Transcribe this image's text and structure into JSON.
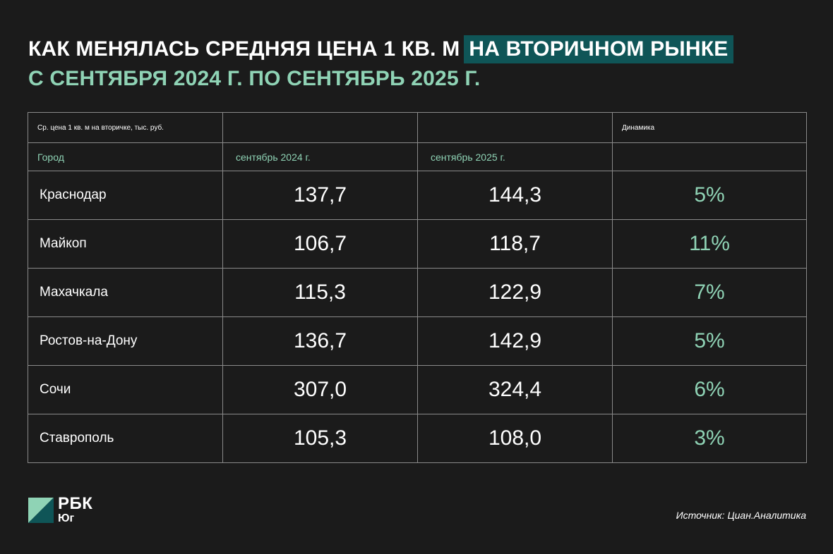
{
  "header": {
    "title_main": "КАК МЕНЯЛАСЬ СРЕДНЯЯ ЦЕНА 1 КВ. М",
    "title_highlight": "НА ВТОРИЧНОМ РЫНКЕ",
    "subtitle": "С СЕНТЯБРЯ 2024 Г. ПО СЕНТЯБРЬ 2025 Г."
  },
  "chart_data": {
    "type": "table",
    "caption": "Ср. цена 1 кв. м на вторичке, тыс. руб.",
    "dynamics_header": "Динамика",
    "columns": [
      "Город",
      "сентябрь 2024 г.",
      "сентябрь 2025 г.",
      ""
    ],
    "rows": [
      {
        "city": "Краснодар",
        "sep_2024": "137,7",
        "sep_2025": "144,3",
        "dynamics": "5%"
      },
      {
        "city": "Майкоп",
        "sep_2024": "106,7",
        "sep_2025": "118,7",
        "dynamics": "11%"
      },
      {
        "city": "Махачкала",
        "sep_2024": "115,3",
        "sep_2025": "122,9",
        "dynamics": "7%"
      },
      {
        "city": "Ростов-на-Дону",
        "sep_2024": "136,7",
        "sep_2025": "142,9",
        "dynamics": "5%"
      },
      {
        "city": "Сочи",
        "sep_2024": "307,0",
        "sep_2025": "324,4",
        "dynamics": "6%"
      },
      {
        "city": "Ставрополь",
        "sep_2024": "105,3",
        "sep_2025": "108,0",
        "dynamics": "3%"
      }
    ]
  },
  "footer": {
    "logo_name": "РБК",
    "logo_sub": "Юг",
    "source": "Источник: Циан.Аналитика"
  },
  "colors": {
    "background": "#1b1b1b",
    "accent_green": "#8fd3b5",
    "highlight_teal": "#0f5557",
    "logo_light": "#8fd3b5",
    "logo_dark": "#0f5557"
  }
}
